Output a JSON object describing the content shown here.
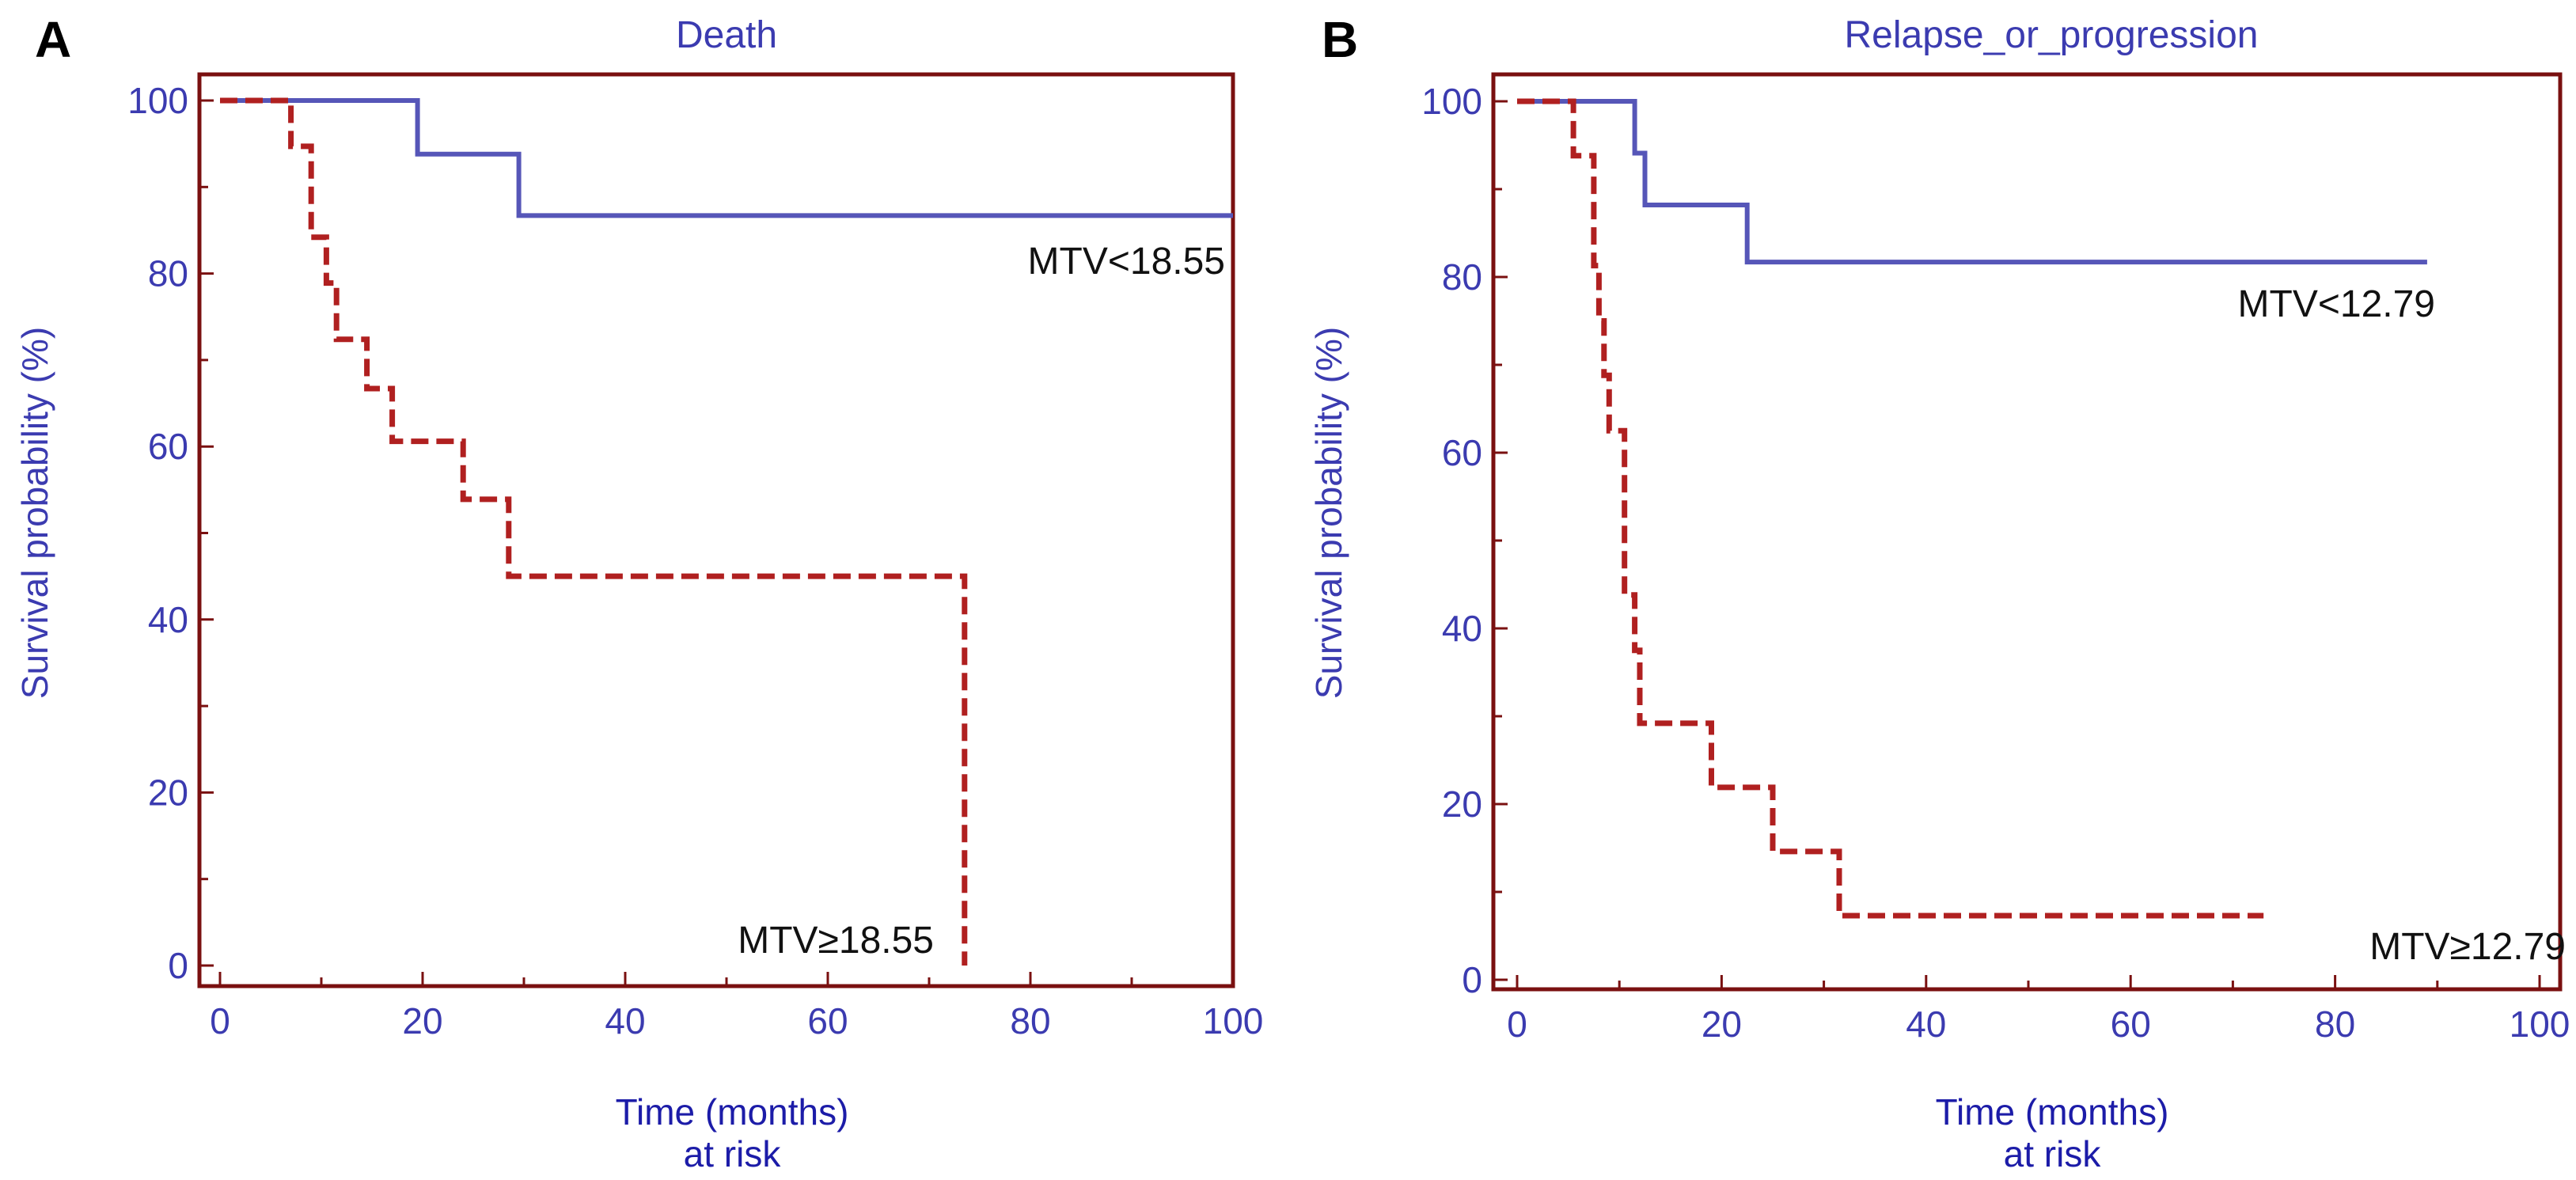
{
  "chart_data": [
    {
      "type": "line",
      "panel": "A",
      "title": "Death",
      "ylabel": "Survival probability (%)",
      "xlabel": "Time (months)",
      "xlabel2": "at risk",
      "xlim": [
        0,
        100
      ],
      "ylim": [
        0,
        100
      ],
      "xticks": [
        0,
        20,
        40,
        60,
        80,
        100
      ],
      "yticks": [
        0,
        20,
        40,
        60,
        80,
        100
      ],
      "colors": {
        "frame": "#7a1010",
        "axis_text": "#3b3bb0"
      },
      "series": [
        {
          "name": "MTV<18.55",
          "label": "MTV<18.55",
          "style": "solid",
          "color": "#5656b8",
          "x": [
            0,
            19.5,
            19.5,
            29.5,
            29.5,
            100
          ],
          "y": [
            100,
            100,
            93.8,
            93.8,
            86.7,
            86.7
          ]
        },
        {
          "name": "MTV≥18.55",
          "label": "MTV≥18.55",
          "style": "dashed",
          "color": "#b02020",
          "x": [
            0,
            7,
            7,
            9,
            9,
            10.5,
            10.5,
            11.5,
            11.5,
            14.5,
            14.5,
            16,
            16,
            17,
            17,
            24,
            24,
            28.5,
            28.5,
            33,
            33,
            73.5,
            73.5
          ],
          "y": [
            100,
            100,
            94.7,
            94.7,
            84.2,
            84.2,
            78.9,
            78.9,
            72.4,
            72.4,
            66.7,
            66.7,
            66.7,
            66.7,
            60.6,
            60.6,
            53.9,
            53.9,
            45,
            45,
            45,
            45,
            0
          ]
        }
      ]
    },
    {
      "type": "line",
      "panel": "B",
      "title": "Relapse_or_progression",
      "ylabel": "Survival probability (%)",
      "xlabel": "Time (months)",
      "xlabel2": "at risk",
      "xlim": [
        0,
        100
      ],
      "ylim": [
        0,
        100
      ],
      "xticks": [
        0,
        20,
        40,
        60,
        80,
        100
      ],
      "yticks": [
        0,
        20,
        40,
        60,
        80,
        100
      ],
      "colors": {
        "frame": "#7a1010",
        "axis_text": "#3b3bb0"
      },
      "series": [
        {
          "name": "MTV<12.79",
          "label": "MTV<12.79",
          "style": "solid",
          "color": "#5656b8",
          "x": [
            0,
            11.5,
            11.5,
            12.5,
            12.5,
            22.5,
            22.5,
            89
          ],
          "y": [
            100,
            100,
            94.1,
            94.1,
            88.2,
            88.2,
            81.7,
            81.7
          ]
        },
        {
          "name": "MTV≥12.79",
          "label": "MTV≥12.79",
          "style": "dashed",
          "color": "#b02020",
          "x": [
            0,
            5.5,
            5.5,
            7.5,
            7.5,
            8,
            8,
            8.5,
            8.5,
            9,
            9,
            9.5,
            9.5,
            10.5,
            10.5,
            11.5,
            11.5,
            12,
            12,
            13,
            13,
            19,
            19,
            25,
            25,
            31.5,
            31.5,
            73
          ],
          "y": [
            100,
            100,
            93.8,
            93.8,
            81.3,
            81.3,
            75,
            75,
            68.8,
            68.8,
            62.5,
            62.5,
            62.5,
            62.5,
            43.8,
            43.8,
            37.5,
            37.5,
            29.2,
            29.2,
            29.2,
            29.2,
            21.9,
            21.9,
            14.6,
            14.6,
            7.3,
            7.3
          ]
        }
      ]
    }
  ]
}
